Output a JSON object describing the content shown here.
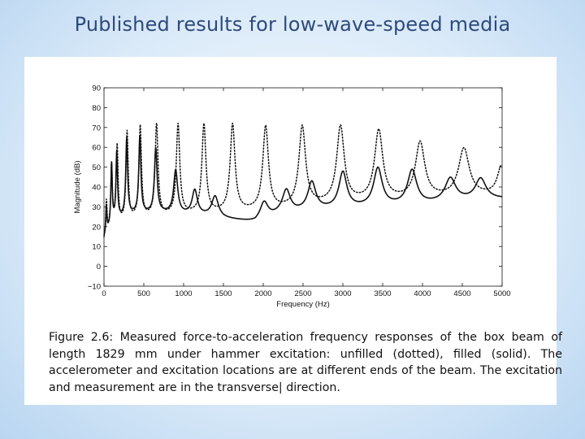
{
  "slide": {
    "title": "Published results for low-wave-speed media"
  },
  "caption": {
    "text": "Figure 2.6: Measured force-to-acceleration frequency responses of the box beam of length 1829 mm under hammer excitation: unfilled (dotted), filled (solid). The accelerometer and excitation locations are at different ends of the beam. The excitation and measurement are in the transverse| direction."
  },
  "chart_data": {
    "type": "line",
    "title": "",
    "xlabel": "Frequency (Hz)",
    "ylabel": "Magnitude (dB)",
    "xlim": [
      0,
      5000
    ],
    "ylim": [
      -10,
      90
    ],
    "xticks": [
      0,
      500,
      1000,
      1500,
      2000,
      2500,
      3000,
      3500,
      4000,
      4500,
      5000
    ],
    "yticks": [
      -10,
      0,
      10,
      20,
      30,
      40,
      50,
      60,
      70,
      80,
      90
    ],
    "yticklabels": [
      "−10",
      "0",
      "10",
      "20",
      "30",
      "40",
      "50",
      "60",
      "70",
      "80",
      "90"
    ],
    "grid": false,
    "series": [
      {
        "name": "unfilled",
        "style": "dotted",
        "color": "#111111",
        "baseline": [
          [
            0,
            12
          ],
          [
            100,
            20
          ],
          [
            400,
            24
          ],
          [
            1000,
            26
          ],
          [
            2000,
            28
          ],
          [
            3000,
            32
          ],
          [
            4000,
            34
          ],
          [
            5000,
            36
          ]
        ],
        "peaks": [
          {
            "f": 30,
            "dB": 32,
            "w": 10
          },
          {
            "f": 95,
            "dB": 50,
            "w": 12
          },
          {
            "f": 165,
            "dB": 60,
            "w": 14
          },
          {
            "f": 290,
            "dB": 67,
            "w": 16
          },
          {
            "f": 455,
            "dB": 70,
            "w": 18
          },
          {
            "f": 660,
            "dB": 71,
            "w": 22
          },
          {
            "f": 930,
            "dB": 71,
            "w": 26
          },
          {
            "f": 1255,
            "dB": 71,
            "w": 30
          },
          {
            "f": 1615,
            "dB": 71,
            "w": 36
          },
          {
            "f": 2030,
            "dB": 70,
            "w": 42
          },
          {
            "f": 2490,
            "dB": 70,
            "w": 50
          },
          {
            "f": 2970,
            "dB": 70,
            "w": 56
          },
          {
            "f": 3450,
            "dB": 68,
            "w": 62
          },
          {
            "f": 3970,
            "dB": 62,
            "w": 70
          },
          {
            "f": 4520,
            "dB": 59,
            "w": 80
          },
          {
            "f": 4990,
            "dB": 50,
            "w": 60
          }
        ]
      },
      {
        "name": "filled",
        "style": "solid",
        "color": "#111111",
        "baseline": [
          [
            0,
            14
          ],
          [
            100,
            22
          ],
          [
            300,
            26
          ],
          [
            700,
            27
          ],
          [
            1000,
            26
          ],
          [
            1400,
            25
          ],
          [
            1500,
            24
          ],
          [
            1900,
            22
          ],
          [
            2200,
            26
          ],
          [
            2600,
            28
          ],
          [
            3000,
            29
          ],
          [
            3500,
            30
          ],
          [
            4000,
            31
          ],
          [
            4500,
            33
          ],
          [
            5000,
            34
          ]
        ],
        "peaks": [
          {
            "f": 30,
            "dB": 30,
            "w": 8
          },
          {
            "f": 95,
            "dB": 51,
            "w": 10
          },
          {
            "f": 160,
            "dB": 57,
            "w": 12
          },
          {
            "f": 285,
            "dB": 64,
            "w": 14
          },
          {
            "f": 450,
            "dB": 65,
            "w": 16
          },
          {
            "f": 650,
            "dB": 59,
            "w": 20
          },
          {
            "f": 900,
            "dB": 48,
            "w": 30
          },
          {
            "f": 1140,
            "dB": 38,
            "w": 40
          },
          {
            "f": 1395,
            "dB": 35,
            "w": 50
          },
          {
            "f": 2010,
            "dB": 32,
            "w": 60
          },
          {
            "f": 2290,
            "dB": 38,
            "w": 60
          },
          {
            "f": 2610,
            "dB": 42,
            "w": 60
          },
          {
            "f": 3000,
            "dB": 47,
            "w": 60
          },
          {
            "f": 3440,
            "dB": 49,
            "w": 65
          },
          {
            "f": 3870,
            "dB": 48,
            "w": 70
          },
          {
            "f": 4350,
            "dB": 44,
            "w": 80
          },
          {
            "f": 4730,
            "dB": 44,
            "w": 80
          }
        ]
      }
    ]
  }
}
